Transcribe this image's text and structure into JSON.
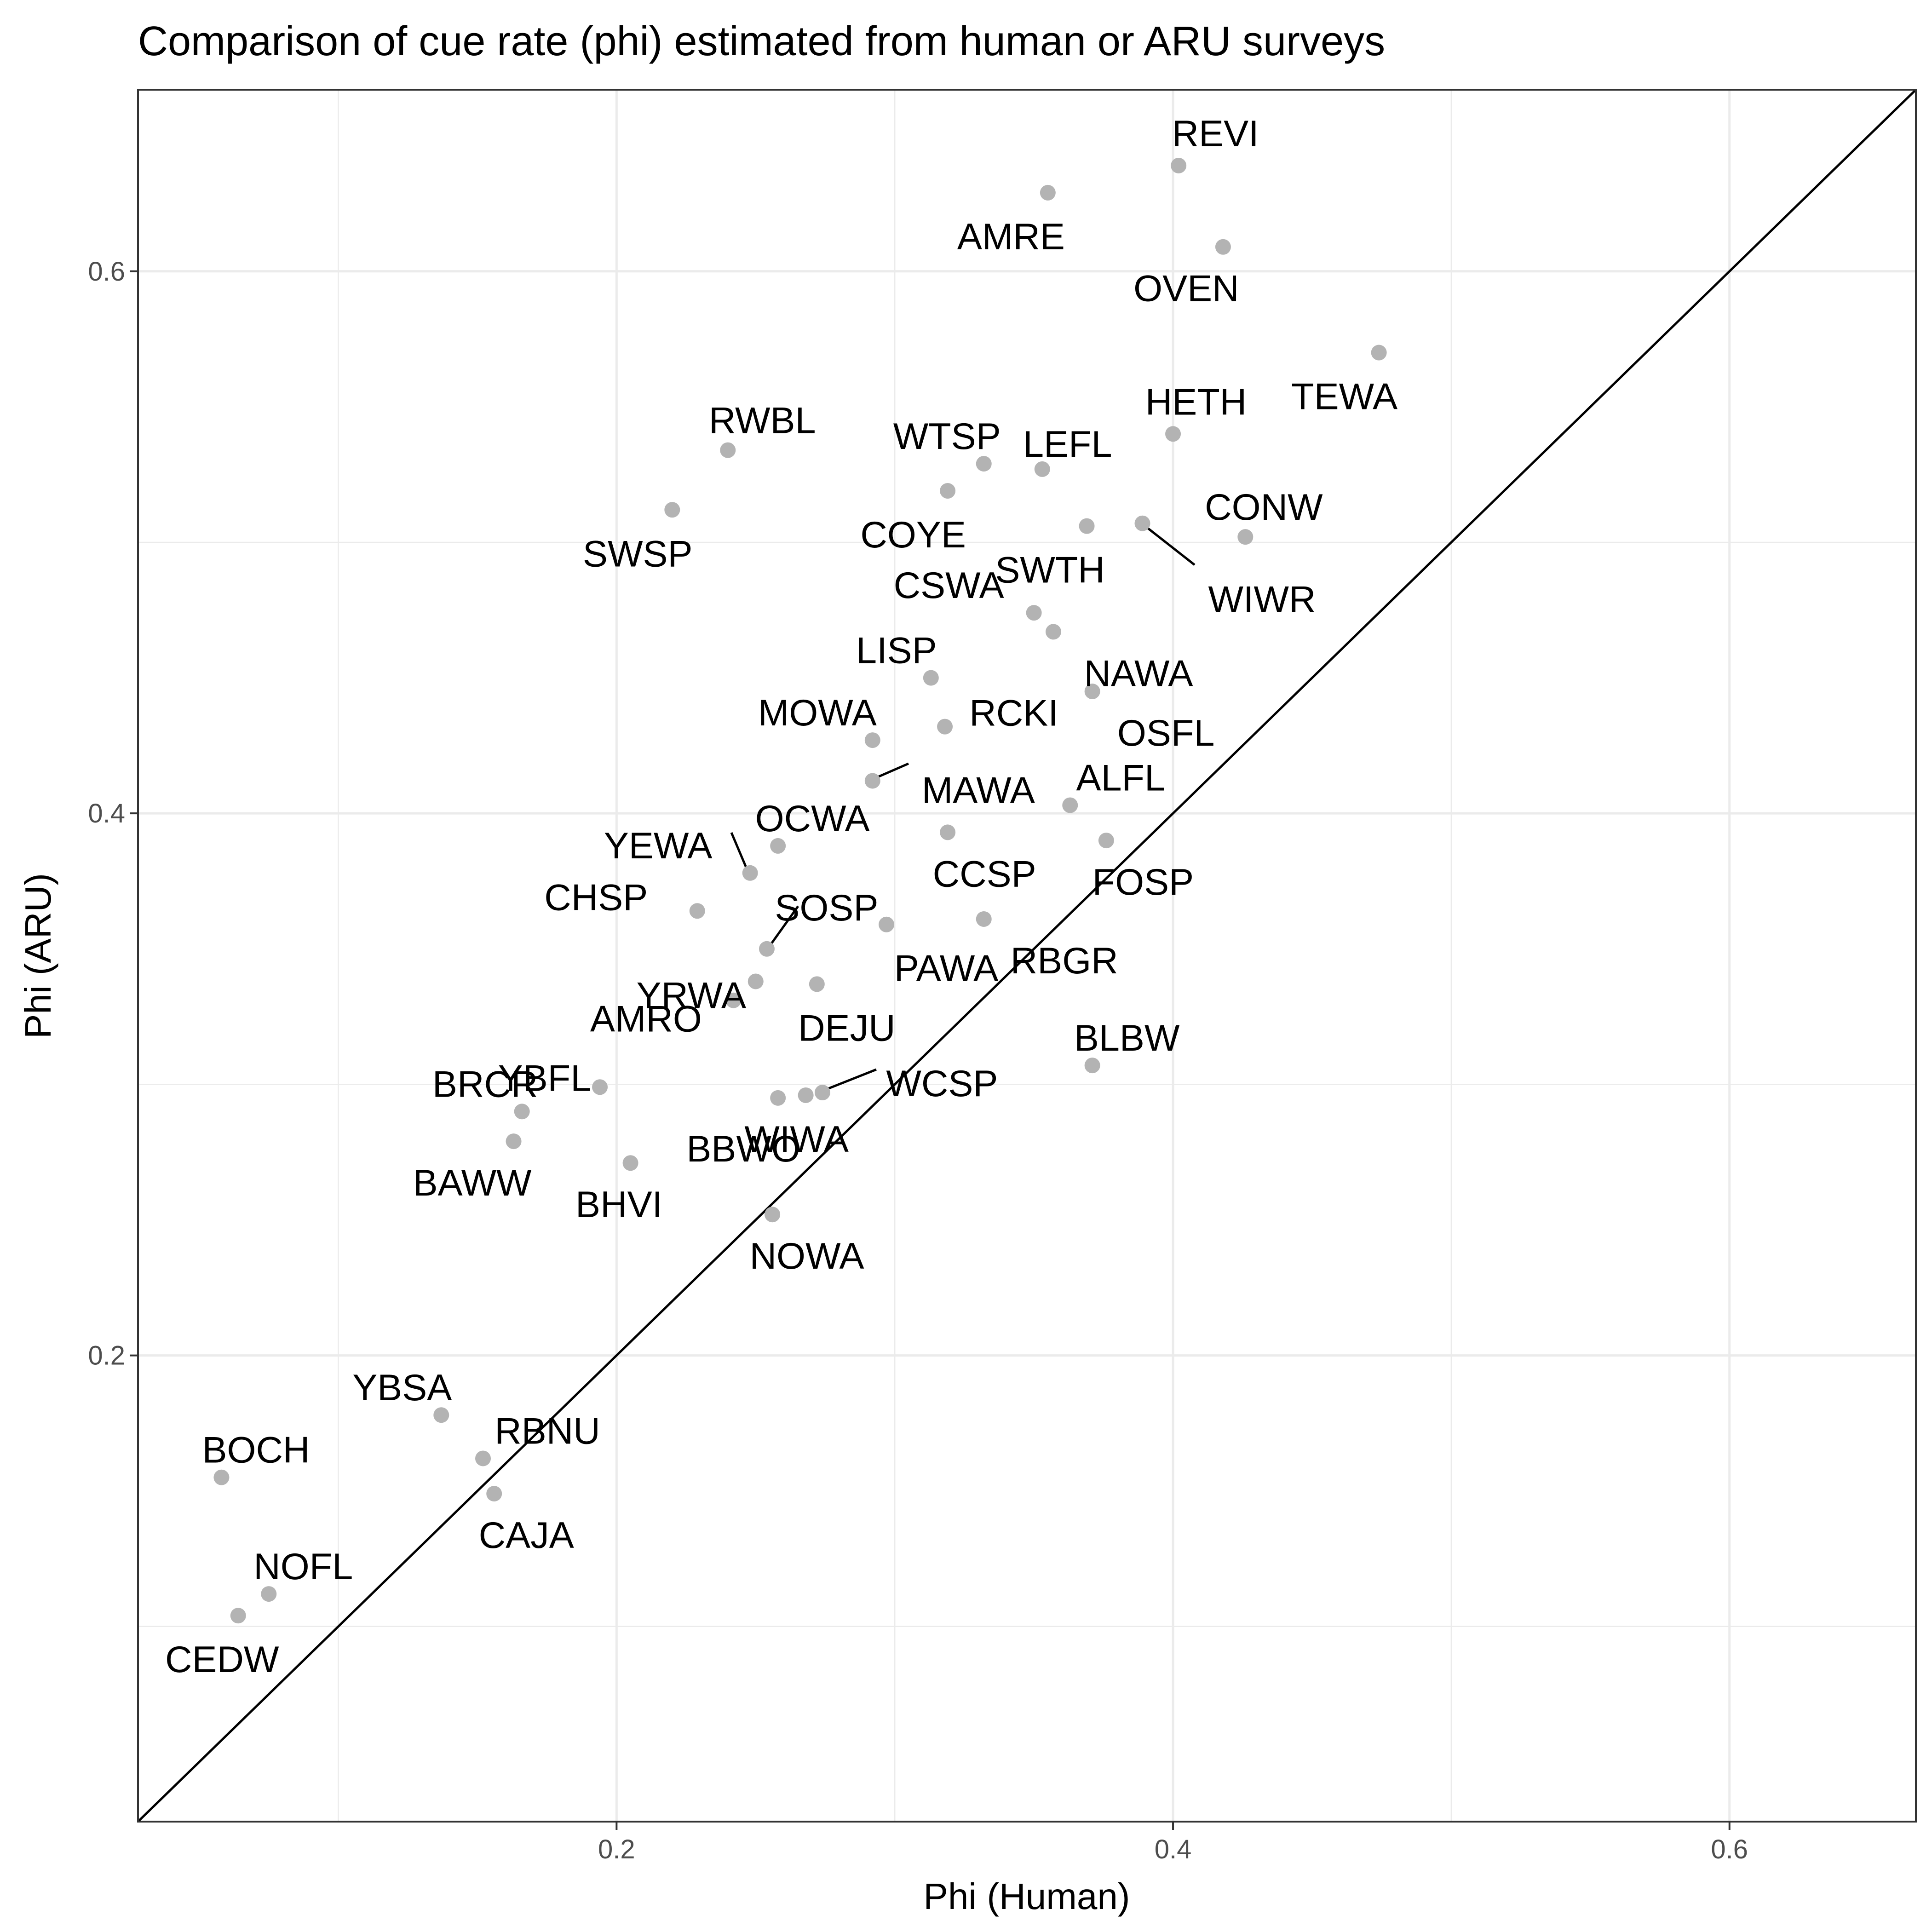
{
  "chart_data": {
    "type": "scatter",
    "title": "Comparison of cue rate (phi) estimated from human or ARU surveys",
    "xlabel": "Phi (Human)",
    "ylabel": "Phi (ARU)",
    "xlim": [
      0.028,
      0.667
    ],
    "ylim": [
      0.028,
      0.667
    ],
    "x_ticks": [
      0.2,
      0.4,
      0.6
    ],
    "y_ticks": [
      0.2,
      0.4,
      0.6
    ],
    "x_tick_labels": [
      "0.2",
      "0.4",
      "0.6"
    ],
    "y_tick_labels": [
      "0.2",
      "0.4",
      "0.6"
    ],
    "grid": true,
    "reference_line": "y = x",
    "point_color": "#b3b3b3",
    "points": [
      {
        "label": "REVI",
        "x": 0.402,
        "y": 0.639
      },
      {
        "label": "AMRE",
        "x": 0.355,
        "y": 0.629
      },
      {
        "label": "OVEN",
        "x": 0.418,
        "y": 0.609
      },
      {
        "label": "TEWA",
        "x": 0.474,
        "y": 0.57
      },
      {
        "label": "HETH",
        "x": 0.4,
        "y": 0.54
      },
      {
        "label": "RWBL",
        "x": 0.24,
        "y": 0.534
      },
      {
        "label": "WTSP",
        "x": 0.332,
        "y": 0.529
      },
      {
        "label": "LEFL",
        "x": 0.353,
        "y": 0.527
      },
      {
        "label": "COYE",
        "x": 0.319,
        "y": 0.519
      },
      {
        "label": "SWSP",
        "x": 0.22,
        "y": 0.512
      },
      {
        "label": "SWTH",
        "x": 0.369,
        "y": 0.506
      },
      {
        "label": "WIWR",
        "x": 0.389,
        "y": 0.507
      },
      {
        "label": "CONW",
        "x": 0.426,
        "y": 0.502
      },
      {
        "label": "CSWA",
        "x": 0.35,
        "y": 0.474
      },
      {
        "label": "NAWA",
        "x": 0.357,
        "y": 0.467
      },
      {
        "label": "LISP",
        "x": 0.313,
        "y": 0.45
      },
      {
        "label": "OSFL",
        "x": 0.371,
        "y": 0.445
      },
      {
        "label": "RCKI",
        "x": 0.318,
        "y": 0.432
      },
      {
        "label": "MOWA",
        "x": 0.292,
        "y": 0.427
      },
      {
        "label": "MAWA",
        "x": 0.292,
        "y": 0.412
      },
      {
        "label": "ALFL",
        "x": 0.363,
        "y": 0.403
      },
      {
        "label": "CCSP",
        "x": 0.319,
        "y": 0.393
      },
      {
        "label": "FOSP",
        "x": 0.376,
        "y": 0.39
      },
      {
        "label": "OCWA",
        "x": 0.258,
        "y": 0.388
      },
      {
        "label": "YEWA",
        "x": 0.248,
        "y": 0.378
      },
      {
        "label": "CHSP",
        "x": 0.229,
        "y": 0.364
      },
      {
        "label": "RBGR",
        "x": 0.332,
        "y": 0.361
      },
      {
        "label": "PAWA",
        "x": 0.297,
        "y": 0.359
      },
      {
        "label": "SOSP",
        "x": 0.254,
        "y": 0.35
      },
      {
        "label": "YRWA",
        "x": 0.25,
        "y": 0.338
      },
      {
        "label": "DEJU",
        "x": 0.272,
        "y": 0.337
      },
      {
        "label": "AMRO",
        "x": 0.242,
        "y": 0.331
      },
      {
        "label": "BLBW",
        "x": 0.371,
        "y": 0.307
      },
      {
        "label": "BRCR",
        "x": 0.166,
        "y": 0.29
      },
      {
        "label": "YBFL",
        "x": 0.194,
        "y": 0.299
      },
      {
        "label": "WCSP",
        "x": 0.274,
        "y": 0.297
      },
      {
        "label": "WIWA",
        "x": 0.268,
        "y": 0.296
      },
      {
        "label": "BBWO",
        "x": 0.258,
        "y": 0.295
      },
      {
        "label": "BAWW",
        "x": 0.163,
        "y": 0.279
      },
      {
        "label": "BHVI",
        "x": 0.205,
        "y": 0.271
      },
      {
        "label": "NOWA",
        "x": 0.256,
        "y": 0.252
      },
      {
        "label": "YBSA",
        "x": 0.137,
        "y": 0.178
      },
      {
        "label": "RBNU",
        "x": 0.152,
        "y": 0.162
      },
      {
        "label": "BOCH",
        "x": 0.058,
        "y": 0.155
      },
      {
        "label": "CAJA",
        "x": 0.156,
        "y": 0.149
      },
      {
        "label": "NOFL",
        "x": 0.075,
        "y": 0.112
      },
      {
        "label": "CEDW",
        "x": 0.064,
        "y": 0.104
      }
    ]
  }
}
